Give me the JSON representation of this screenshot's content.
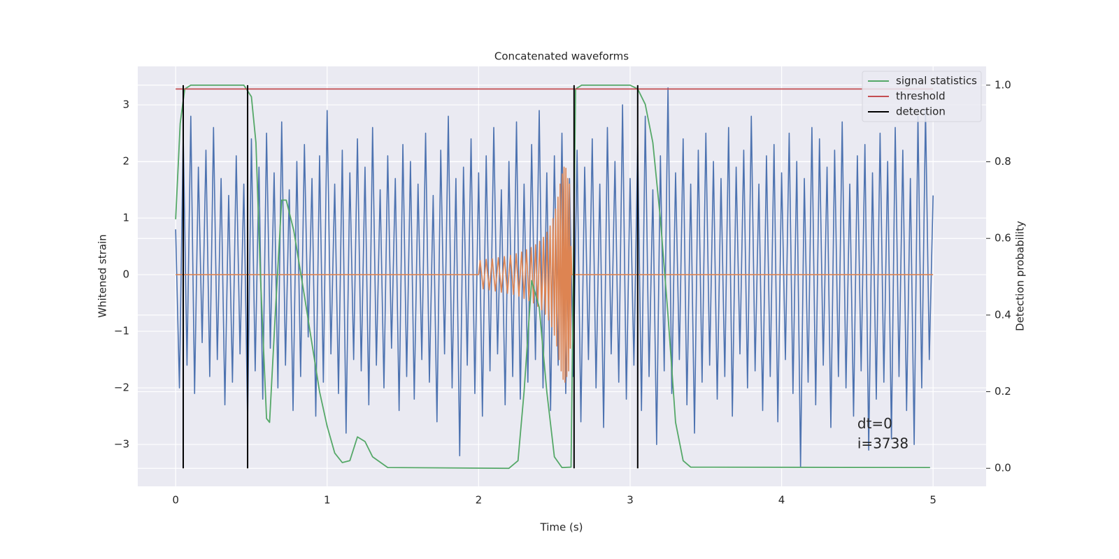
{
  "chart_data": {
    "type": "line",
    "title": "Concatenated waveforms",
    "xlabel": "Time (s)",
    "ylabel": "Whitened strain",
    "y2label": "Detection probability",
    "xlim": [
      -0.25,
      5.35
    ],
    "ylim": [
      -3.74,
      3.68
    ],
    "y2lim": [
      -0.047,
      1.049
    ],
    "xticks": [
      0,
      1,
      2,
      3,
      4,
      5
    ],
    "yticks": [
      {
        "value": -3,
        "label": "−3"
      },
      {
        "value": -2,
        "label": "−2"
      },
      {
        "value": -1,
        "label": "−1"
      },
      0,
      1,
      2,
      3
    ],
    "y2ticks": [
      {
        "value": 0,
        "label": "0.0"
      },
      {
        "value": 0.2,
        "label": "0.2"
      },
      {
        "value": 0.4,
        "label": "0.4"
      },
      {
        "value": 0.6,
        "label": "0.6"
      },
      {
        "value": 0.8,
        "label": "0.8"
      },
      {
        "value": 1.0,
        "label": "1.0"
      }
    ],
    "grid": true,
    "legend": "upper right",
    "series": [
      {
        "color": "#4c72b0",
        "axis": "y",
        "x": [
          0,
          0.025,
          0.05,
          0.075,
          0.1,
          0.125,
          0.15,
          0.175,
          0.2,
          0.225,
          0.25,
          0.275,
          0.3,
          0.325,
          0.35,
          0.375,
          0.4,
          0.425,
          0.45,
          0.475,
          0.5,
          0.525,
          0.55,
          0.575,
          0.6,
          0.625,
          0.65,
          0.675,
          0.7,
          0.725,
          0.75,
          0.775,
          0.8,
          0.825,
          0.85,
          0.875,
          0.9,
          0.925,
          0.95,
          0.975,
          1,
          1.025,
          1.05,
          1.075,
          1.1,
          1.125,
          1.15,
          1.175,
          1.2,
          1.225,
          1.25,
          1.275,
          1.3,
          1.325,
          1.35,
          1.375,
          1.4,
          1.425,
          1.45,
          1.475,
          1.5,
          1.525,
          1.55,
          1.575,
          1.6,
          1.625,
          1.65,
          1.675,
          1.7,
          1.725,
          1.75,
          1.775,
          1.8,
          1.825,
          1.85,
          1.875,
          1.9,
          1.925,
          1.95,
          1.975,
          2,
          2.025,
          2.05,
          2.075,
          2.1,
          2.125,
          2.15,
          2.175,
          2.2,
          2.225,
          2.25,
          2.275,
          2.3,
          2.325,
          2.35,
          2.375,
          2.4,
          2.425,
          2.45,
          2.475,
          2.5,
          2.525,
          2.55,
          2.575,
          2.6,
          2.625,
          2.65,
          2.675,
          2.7,
          2.725,
          2.75,
          2.775,
          2.8,
          2.825,
          2.85,
          2.875,
          2.9,
          2.925,
          2.95,
          2.975,
          3,
          3.025,
          3.05,
          3.075,
          3.1,
          3.125,
          3.15,
          3.175,
          3.2,
          3.225,
          3.25,
          3.275,
          3.3,
          3.325,
          3.35,
          3.375,
          3.4,
          3.425,
          3.45,
          3.475,
          3.5,
          3.525,
          3.55,
          3.575,
          3.6,
          3.625,
          3.65,
          3.675,
          3.7,
          3.725,
          3.75,
          3.775,
          3.8,
          3.825,
          3.85,
          3.875,
          3.9,
          3.925,
          3.95,
          3.975,
          4,
          4.025,
          4.05,
          4.075,
          4.1,
          4.125,
          4.15,
          4.175,
          4.2,
          4.225,
          4.25,
          4.275,
          4.3,
          4.325,
          4.35,
          4.375,
          4.4,
          4.425,
          4.45,
          4.475,
          4.5,
          4.525,
          4.55,
          4.575,
          4.6,
          4.625,
          4.65,
          4.675,
          4.7,
          4.725,
          4.75,
          4.775,
          4.8,
          4.825,
          4.85,
          4.875,
          4.9,
          4.925,
          4.95,
          4.975,
          5
        ],
        "values": [
          0.8,
          -2.0,
          2.5,
          -1.6,
          2.8,
          -2.1,
          1.9,
          -1.2,
          2.2,
          -1.8,
          2.6,
          -1.5,
          1.7,
          -2.3,
          1.4,
          -1.9,
          2.1,
          -1.4,
          1.6,
          -2.6,
          2.4,
          -1.7,
          1.9,
          -2.2,
          2.5,
          -1.3,
          1.8,
          -2.0,
          2.7,
          -1.6,
          1.5,
          -2.4,
          2.0,
          -1.8,
          2.3,
          -1.1,
          1.7,
          -2.5,
          2.1,
          -1.9,
          2.9,
          -1.4,
          1.6,
          -2.1,
          2.2,
          -2.8,
          1.8,
          -1.5,
          2.4,
          -1.7,
          1.9,
          -2.3,
          2.6,
          -1.6,
          1.5,
          -2.0,
          2.1,
          -1.3,
          1.7,
          -2.4,
          2.3,
          -1.8,
          2.0,
          -2.2,
          1.6,
          -1.5,
          2.5,
          -1.9,
          1.4,
          -2.6,
          2.2,
          -1.4,
          2.8,
          -2.0,
          1.7,
          -3.2,
          1.9,
          -1.6,
          2.4,
          -2.1,
          1.8,
          -2.5,
          2.1,
          -1.7,
          2.6,
          -1.4,
          1.5,
          -2.3,
          2.0,
          -1.8,
          2.7,
          -2.2,
          1.6,
          -1.9,
          2.3,
          -1.5,
          2.9,
          -2.0,
          1.8,
          -2.4,
          2.1,
          -1.6,
          2.5,
          -2.1,
          1.7,
          -1.8,
          2.2,
          -2.6,
          1.9,
          -1.5,
          2.4,
          -2.0,
          1.6,
          -2.7,
          2.6,
          -1.4,
          2.0,
          -1.9,
          3.0,
          -2.2,
          1.7,
          -1.6,
          2.3,
          -2.4,
          2.8,
          -1.8,
          1.5,
          -3.0,
          2.1,
          -1.7,
          3.3,
          -2.1,
          1.8,
          -1.5,
          2.4,
          -2.3,
          1.6,
          -2.8,
          2.2,
          -1.9,
          2.5,
          -1.6,
          2.0,
          -2.2,
          1.7,
          -1.8,
          2.6,
          -2.5,
          1.9,
          -1.4,
          2.2,
          -2.0,
          2.8,
          -1.7,
          1.6,
          -2.4,
          2.1,
          -1.8,
          2.3,
          -2.6,
          1.8,
          -1.5,
          2.5,
          -2.1,
          2.0,
          -3.4,
          1.7,
          -1.9,
          2.6,
          -2.3,
          2.4,
          -1.6,
          1.9,
          -2.7,
          2.2,
          -1.8,
          2.7,
          -2.0,
          1.6,
          -2.5,
          2.1,
          -1.7,
          2.3,
          -3.1,
          1.8,
          -2.2,
          2.5,
          -1.9,
          2.0,
          -2.9,
          2.6,
          -1.8,
          2.2,
          -2.4,
          1.7,
          -3.0,
          2.8,
          -2.0,
          2.9,
          -1.5,
          1.4
        ]
      },
      {
        "color": "#dd8452",
        "axis": "y",
        "x": [
          0,
          2.0,
          2.01,
          2.03,
          2.05,
          2.07,
          2.09,
          2.11,
          2.13,
          2.15,
          2.17,
          2.19,
          2.21,
          2.23,
          2.248,
          2.266,
          2.284,
          2.3,
          2.316,
          2.332,
          2.347,
          2.362,
          2.376,
          2.39,
          2.403,
          2.416,
          2.428,
          2.44,
          2.451,
          2.462,
          2.472,
          2.482,
          2.491,
          2.5,
          2.508,
          2.516,
          2.524,
          2.531,
          2.538,
          2.545,
          2.552,
          2.558,
          2.564,
          2.57,
          2.576,
          2.582,
          2.588,
          2.594,
          2.6,
          2.605,
          2.61,
          2.615,
          5
        ],
        "values": [
          0,
          0,
          0.25,
          -0.25,
          0.27,
          -0.27,
          0.28,
          -0.29,
          0.3,
          -0.31,
          0.32,
          -0.33,
          0.34,
          -0.35,
          0.37,
          -0.38,
          0.4,
          -0.42,
          0.44,
          -0.46,
          0.48,
          -0.5,
          0.53,
          -0.56,
          0.59,
          -0.62,
          0.66,
          -0.7,
          0.75,
          -0.8,
          0.86,
          -0.92,
          0.99,
          -1.07,
          1.16,
          -1.26,
          1.37,
          -1.5,
          1.6,
          -1.7,
          1.78,
          -1.85,
          1.9,
          -1.9,
          1.88,
          -1.8,
          1.7,
          -1.7,
          1.6,
          -1.3,
          0.5,
          0,
          0
        ]
      },
      {
        "name": "signal statistics",
        "color": "#55a868",
        "axis": "y2",
        "x": [
          0,
          0.03,
          0.06,
          0.1,
          0.45,
          0.5,
          0.53,
          0.56,
          0.6,
          0.62,
          0.66,
          0.7,
          0.73,
          0.78,
          0.85,
          0.95,
          1.0,
          1.05,
          1.1,
          1.15,
          1.2,
          1.25,
          1.3,
          1.4,
          2.2,
          2.26,
          2.3,
          2.35,
          2.4,
          2.45,
          2.5,
          2.55,
          2.61,
          2.64,
          2.68,
          3.0,
          3.05,
          3.1,
          3.15,
          3.2,
          3.25,
          3.3,
          3.35,
          3.4,
          4.98
        ],
        "values": [
          0.65,
          0.9,
          0.99,
          1.0,
          1.0,
          0.97,
          0.85,
          0.5,
          0.13,
          0.12,
          0.42,
          0.7,
          0.7,
          0.62,
          0.45,
          0.2,
          0.11,
          0.04,
          0.015,
          0.02,
          0.082,
          0.07,
          0.03,
          0.002,
          0.0,
          0.02,
          0.2,
          0.49,
          0.42,
          0.2,
          0.03,
          0.002,
          0.003,
          0.99,
          1.0,
          1.0,
          0.99,
          0.95,
          0.85,
          0.65,
          0.4,
          0.12,
          0.02,
          0.003,
          0.002
        ]
      },
      {
        "name": "threshold",
        "color": "#c44e52",
        "axis": "y2",
        "x": [
          0,
          5
        ],
        "values": [
          0.99,
          0.99
        ]
      },
      {
        "name": "detection",
        "color": "#000000",
        "axis": "y2",
        "kind": "vlines",
        "x": [
          0.05,
          0.475,
          2.63,
          3.05
        ],
        "ymin": 0,
        "ymax": 1
      }
    ],
    "annotations": [
      {
        "text": "dt=0",
        "x": 4.5,
        "y": -2.65
      },
      {
        "text": "i=3738",
        "x": 4.5,
        "y": -3.0
      }
    ]
  }
}
